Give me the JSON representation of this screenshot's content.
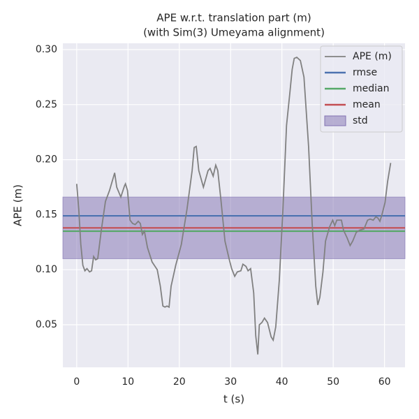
{
  "chart_data": {
    "type": "line",
    "title": [
      "APE w.r.t. translation part (m)",
      "(with Sim(3) Umeyama alignment)"
    ],
    "xlabel": "t (s)",
    "ylabel": "APE (m)",
    "xlim": [
      -2.7,
      64
    ],
    "ylim": [
      0.0113,
      0.3057
    ],
    "xticks": [
      0,
      10,
      20,
      30,
      40,
      50,
      60
    ],
    "yticks": [
      0.05,
      {
        "value": 0.1,
        "label": "0.10"
      },
      0.15,
      {
        "value": 0.2,
        "label": "0.20"
      },
      0.25,
      {
        "value": 0.3,
        "label": "0.30"
      }
    ],
    "grid": true,
    "legend": "upper right",
    "x": [
      0,
      0.4,
      0.8,
      1.2,
      1.6,
      2.0,
      2.5,
      2.9,
      3.3,
      3.7,
      4.1,
      4.8,
      5.6,
      6.4,
      7.4,
      7.8,
      8.6,
      9.3,
      9.5,
      9.9,
      10.4,
      10.9,
      11.4,
      12.0,
      12.4,
      12.8,
      13.2,
      13.8,
      14.7,
      15.7,
      16.3,
      16.8,
      17.2,
      17.6,
      18.0,
      18.4,
      19.3,
      20.4,
      21.5,
      22.5,
      22.9,
      23.3,
      23.8,
      24.7,
      25.6,
      26.0,
      26.6,
      27.1,
      27.5,
      28.1,
      28.9,
      29.7,
      30.2,
      30.8,
      31.3,
      32.0,
      32.4,
      33.0,
      33.4,
      33.9,
      34.5,
      34.9,
      35.3,
      35.6,
      36.1,
      36.6,
      37.2,
      37.9,
      38.3,
      38.8,
      39.5,
      40.2,
      40.9,
      41.6,
      42.0,
      42.4,
      42.9,
      43.6,
      44.3,
      45.2,
      45.9,
      46.6,
      47.0,
      47.4,
      48.0,
      48.5,
      49.3,
      49.9,
      50.3,
      50.7,
      51.2,
      51.6,
      52.0,
      52.7,
      53.3,
      53.8,
      54.5,
      55.2,
      56.0,
      56.7,
      57.2,
      57.8,
      58.3,
      58.7,
      59.1,
      59.5,
      60.1,
      60.6,
      61.2
    ],
    "series": [
      {
        "name": "APE (m)",
        "color": "#808080",
        "values": [
          0.178,
          0.155,
          0.123,
          0.104,
          0.099,
          0.101,
          0.098,
          0.099,
          0.112,
          0.109,
          0.11,
          0.136,
          0.162,
          0.172,
          0.188,
          0.175,
          0.166,
          0.176,
          0.178,
          0.172,
          0.145,
          0.142,
          0.141,
          0.144,
          0.142,
          0.132,
          0.135,
          0.12,
          0.107,
          0.1,
          0.085,
          0.067,
          0.066,
          0.067,
          0.066,
          0.085,
          0.104,
          0.123,
          0.155,
          0.19,
          0.211,
          0.212,
          0.19,
          0.175,
          0.19,
          0.192,
          0.185,
          0.195,
          0.19,
          0.164,
          0.126,
          0.11,
          0.101,
          0.094,
          0.098,
          0.099,
          0.105,
          0.103,
          0.099,
          0.101,
          0.079,
          0.04,
          0.023,
          0.05,
          0.052,
          0.056,
          0.052,
          0.039,
          0.036,
          0.048,
          0.091,
          0.155,
          0.231,
          0.263,
          0.282,
          0.292,
          0.293,
          0.29,
          0.275,
          0.212,
          0.142,
          0.085,
          0.068,
          0.075,
          0.098,
          0.126,
          0.139,
          0.145,
          0.14,
          0.145,
          0.145,
          0.145,
          0.136,
          0.129,
          0.122,
          0.126,
          0.134,
          0.136,
          0.137,
          0.145,
          0.146,
          0.145,
          0.148,
          0.147,
          0.144,
          0.15,
          0.161,
          0.18,
          0.197
        ]
      }
    ],
    "stats": [
      {
        "name": "rmse",
        "color": "#4c72b0",
        "value": 0.149
      },
      {
        "name": "median",
        "color": "#55a868",
        "value": 0.135
      },
      {
        "name": "mean",
        "color": "#c44e52",
        "value": 0.138
      }
    ],
    "std": {
      "name": "std",
      "color": "#8172b2",
      "range": [
        0.11,
        0.166
      ]
    }
  }
}
